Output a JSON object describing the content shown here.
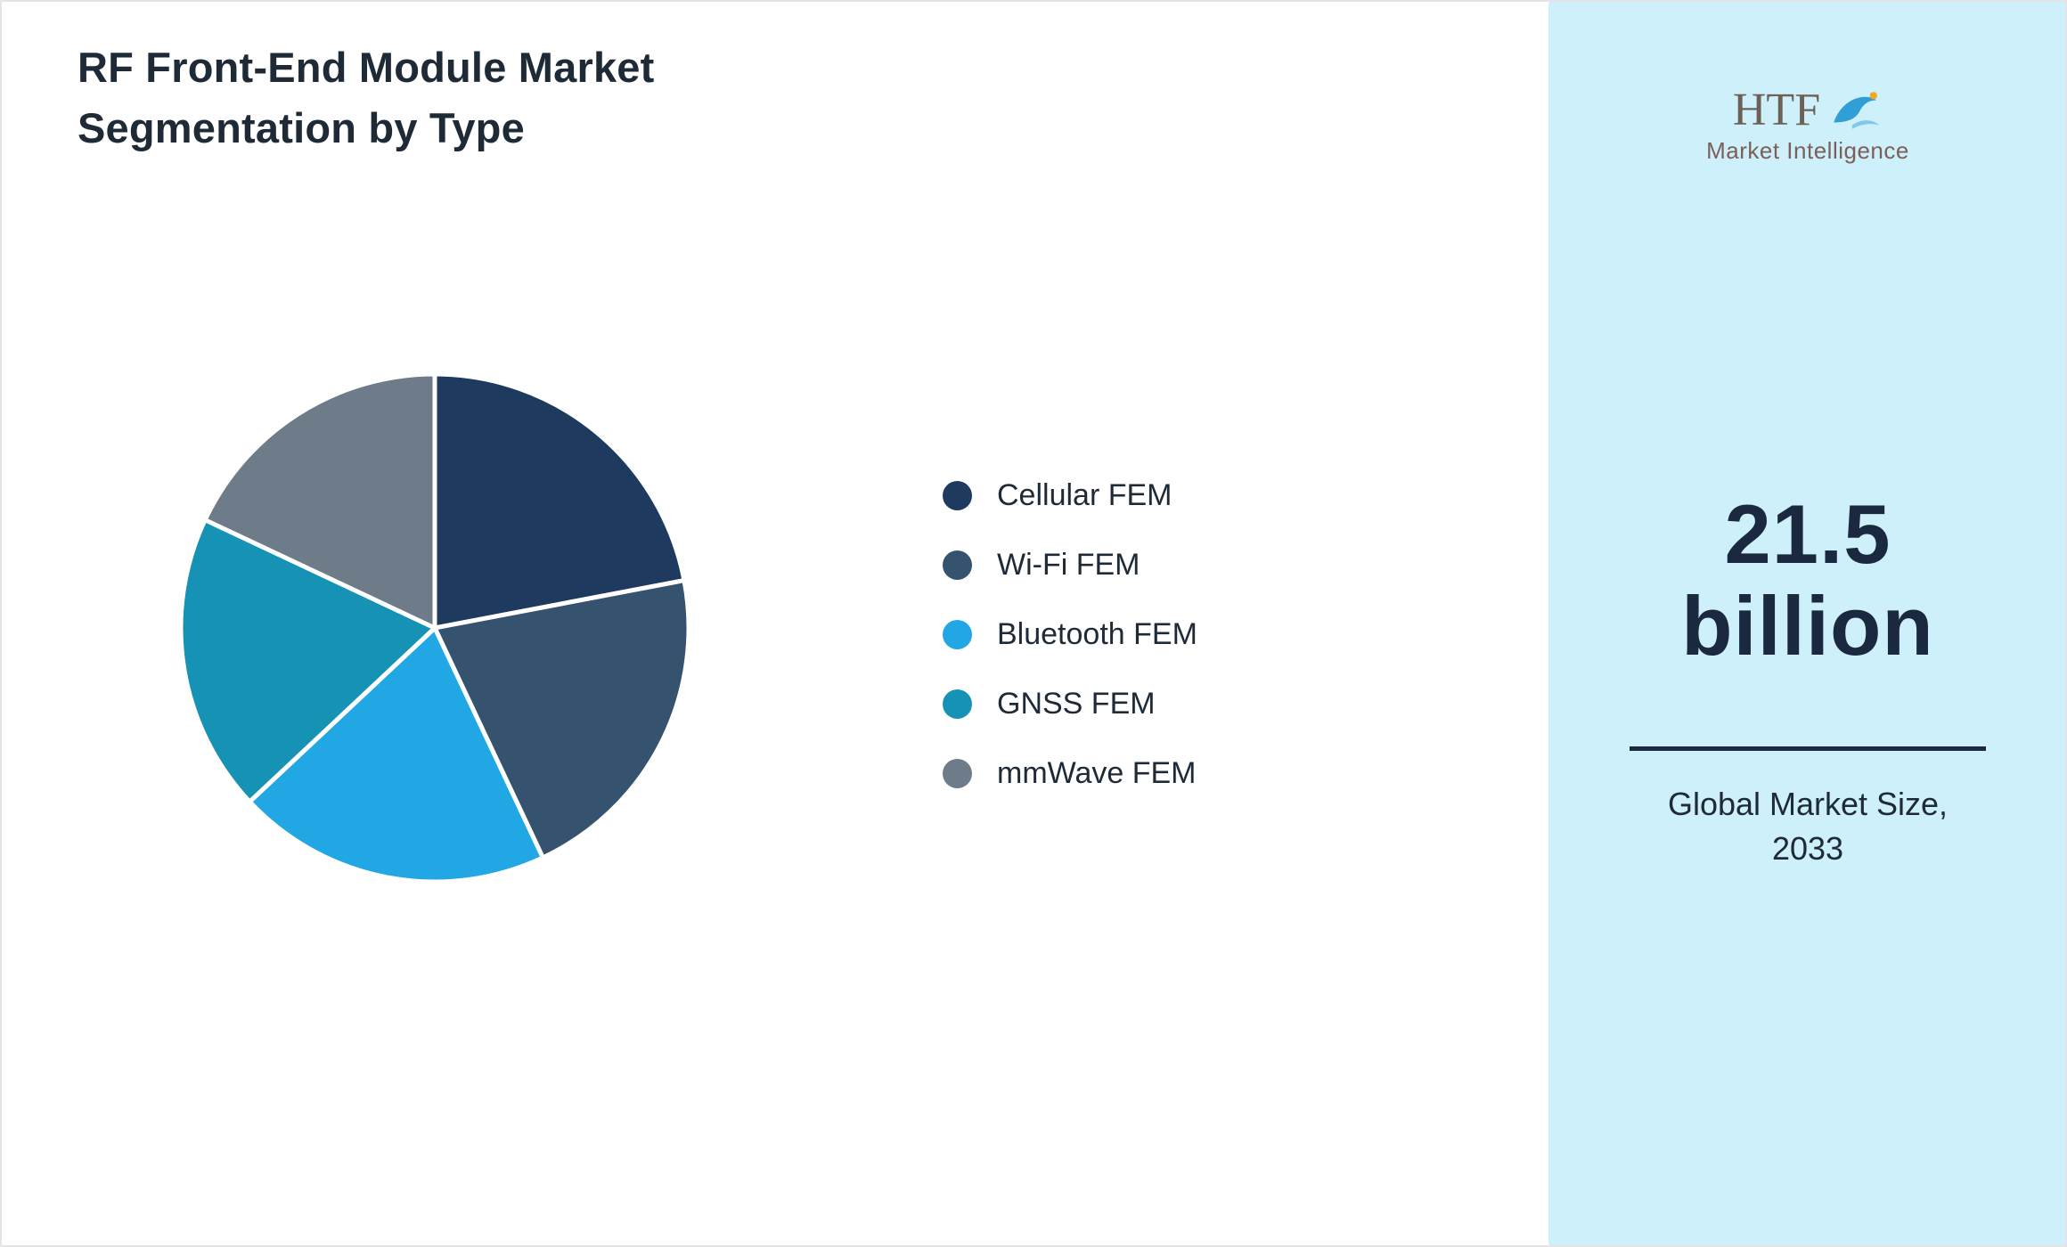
{
  "title": "RF Front-End Module Market Segmentation by Type",
  "chart_data": {
    "type": "pie",
    "title": "RF Front-End Module Market Segmentation by Type",
    "labels": [
      "Cellular FEM",
      "Wi-Fi FEM",
      "Bluetooth FEM",
      "GNSS FEM",
      "mmWave FEM"
    ],
    "values": [
      22,
      21,
      20,
      19,
      18
    ],
    "colors": [
      "#1e3a5e",
      "#35526f",
      "#21a7e3",
      "#1592b4",
      "#6e7b89"
    ],
    "legend_position": "right",
    "start_angle_deg": 0,
    "direction": "clockwise",
    "slice_border_color": "#ffffff"
  },
  "sidebar": {
    "background": "#cdf0fa",
    "logo": {
      "text": "HTF",
      "subtitle": "Market Intelligence"
    },
    "stat": {
      "value_line1": "21.5",
      "value_line2": "billion"
    },
    "caption_line1": "Global Market Size,",
    "caption_line2": "2033"
  }
}
